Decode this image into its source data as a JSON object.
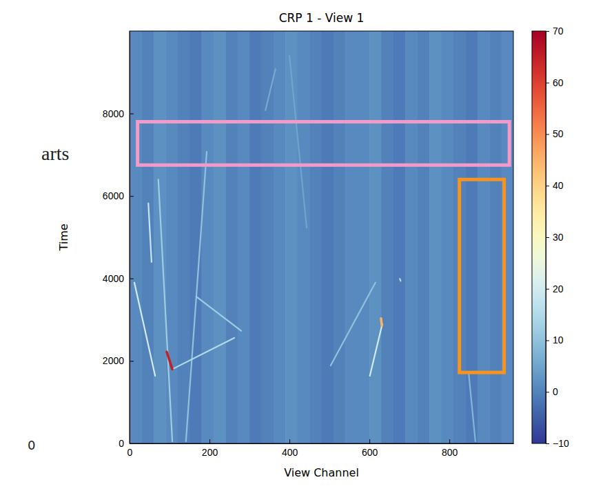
{
  "chart_data": {
    "type": "heatmap",
    "title": "CRP 1 - View 1",
    "x_label": "View Channel",
    "y_label": "Time",
    "xlim": [
      0,
      960
    ],
    "ylim": [
      0,
      10000
    ],
    "xticks": [
      0,
      200,
      400,
      600,
      800
    ],
    "yticks": [
      0,
      2000,
      4000,
      6000,
      8000
    ],
    "cells": {
      "x_bins": [
        0,
        30,
        60,
        90,
        120,
        150,
        180,
        210,
        240,
        270,
        300,
        330,
        360,
        390,
        420,
        450,
        480,
        510,
        540,
        570,
        600,
        630,
        660,
        690,
        720,
        750,
        780,
        810,
        840,
        870,
        900,
        930,
        960
      ],
      "y_bins": [
        0,
        10000
      ],
      "values": [
        [
          1,
          0,
          2,
          1,
          0,
          -1,
          1,
          2,
          0,
          1,
          -1,
          0,
          1,
          2,
          1,
          0,
          -1,
          0,
          1,
          1,
          2,
          0,
          -1,
          1,
          0,
          2,
          1,
          0,
          -1,
          1,
          0,
          1
        ]
      ]
    },
    "tracks": [
      {
        "x": [
          72,
          107
        ],
        "y": [
          6400,
          50
        ],
        "value": 12
      },
      {
        "x": [
          193,
          141
        ],
        "y": [
          7070,
          50
        ],
        "value": 10
      },
      {
        "x": [
          12,
          64
        ],
        "y": [
          3900,
          1640
        ],
        "value": 20
      },
      {
        "x": [
          107,
          262
        ],
        "y": [
          1800,
          2560
        ],
        "value": 15
      },
      {
        "x": [
          167,
          279
        ],
        "y": [
          3560,
          2730
        ],
        "value": 12
      },
      {
        "x": [
          365,
          340
        ],
        "y": [
          9080,
          8080
        ],
        "value": 6
      },
      {
        "x": [
          400,
          443
        ],
        "y": [
          9400,
          5230
        ],
        "value": 5
      },
      {
        "x": [
          615,
          503
        ],
        "y": [
          3900,
          1890
        ],
        "value": 10
      },
      {
        "x": [
          632,
          601
        ],
        "y": [
          2890,
          1640
        ],
        "value": 20
      },
      {
        "x": [
          848,
          865
        ],
        "y": [
          1720,
          50
        ],
        "value": 8
      },
      {
        "x": [
          47,
          55
        ],
        "y": [
          5820,
          4400
        ],
        "value": 18
      },
      {
        "x": [
          676,
          678
        ],
        "y": [
          3990,
          3940
        ],
        "value": 15
      },
      {
        "x": [
          93,
          107
        ],
        "y": [
          2220,
          1800
        ],
        "value": 65
      },
      {
        "x": [
          629,
          631
        ],
        "y": [
          3030,
          2860
        ],
        "value": 45
      }
    ],
    "colorbar": {
      "range": [
        -10,
        70
      ],
      "ticks": [
        70,
        60,
        50,
        40,
        30,
        20,
        10,
        0,
        {
          "value": -10,
          "label": "−10"
        }
      ]
    },
    "regions": [
      {
        "x": [
          20,
          950
        ],
        "y": [
          6750,
          7800
        ],
        "color": "#f49ac8"
      },
      {
        "x": [
          825,
          937
        ],
        "y": [
          1720,
          6400
        ],
        "color": "#f7931e"
      }
    ],
    "annotations": [
      "arts",
      "0"
    ]
  }
}
